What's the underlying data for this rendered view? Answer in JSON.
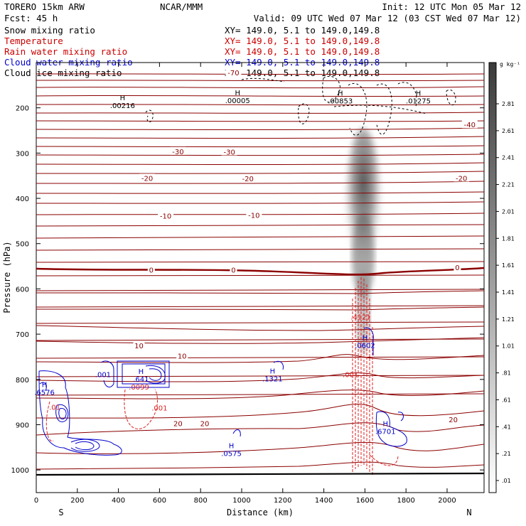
{
  "header": {
    "model": "TORERO  15km ARW",
    "center": "NCAR/MMM",
    "init": "Init: 12 UTC Mon 05 Mar 12",
    "fcst": "Fcst:   45 h",
    "valid": "Valid: 09 UTC Wed 07 Mar 12 (03 CST Wed 07 Mar 12)"
  },
  "legend": [
    {
      "label": "Snow mixing ratio",
      "color": "#000000",
      "xy": "XY= 149.0,  5.1 to 149.0,149.8"
    },
    {
      "label": "Temperature",
      "color": "#cc0000",
      "xy": "XY= 149.0,  5.1 to 149.0,149.8"
    },
    {
      "label": "Rain water mixing ratio",
      "color": "#cc0000",
      "xy": "XY= 149.0,  5.1 to 149.0,149.8"
    },
    {
      "label": "Cloud water mixing ratio",
      "color": "#0000cc",
      "xy": "XY= 149.0,  5.1 to 149.0,149.8"
    },
    {
      "label": "Cloud ice mixing ratio",
      "color": "#000000",
      "xy": "XY= 149.0,  5.1 to 149.0,149.8"
    }
  ],
  "colors": {
    "temperature": "#8b0000",
    "rain": "#dd2222",
    "cloud_water": "#0000cc",
    "cloud_ice": "#000000"
  },
  "chart_data": {
    "type": "cross-section",
    "xlabel": "Distance (km)",
    "ylabel": "Pressure (hPa)",
    "xlim": [
      0,
      2180
    ],
    "ylim": [
      1050,
      100
    ],
    "x_ticks": [
      0,
      200,
      400,
      600,
      800,
      1000,
      1200,
      1400,
      1600,
      1800,
      2000
    ],
    "y_ticks": [
      200,
      300,
      400,
      500,
      600,
      700,
      800,
      900,
      1000
    ],
    "x_end_labels": {
      "left": "S",
      "right": "N"
    },
    "colorbar": {
      "unit": "g kg⁻¹",
      "labels": [
        ".01",
        ".21",
        ".41",
        ".61",
        ".81",
        "1.01",
        "1.21",
        "1.41",
        "1.61",
        "1.81",
        "2.01",
        "2.21",
        "2.41",
        "2.61",
        "2.81"
      ]
    },
    "temperature_isotherms": [
      {
        "label": "-70",
        "p": 122,
        "lx": 960
      },
      {
        "label": "-40",
        "p": 237,
        "lx": 2110
      },
      {
        "label": "-30",
        "p": 296,
        "lx": 690
      },
      {
        "label": "-30",
        "p": 297,
        "lx": 940
      },
      {
        "label": "-20",
        "p": 355,
        "lx": 540
      },
      {
        "label": "-20",
        "p": 356,
        "lx": 1030
      },
      {
        "label": "-20",
        "p": 355,
        "lx": 2070
      },
      {
        "label": "-10",
        "p": 438,
        "lx": 630
      },
      {
        "label": "-10",
        "p": 437,
        "lx": 1060
      },
      {
        "label": "0",
        "p": 558,
        "lx": 560
      },
      {
        "label": "0",
        "p": 558,
        "lx": 960
      },
      {
        "label": "0",
        "p": 552,
        "lx": 2050
      },
      {
        "label": "10",
        "p": 725,
        "lx": 500
      },
      {
        "label": "10",
        "p": 748,
        "lx": 710
      },
      {
        "label": "20",
        "p": 897,
        "lx": 690
      },
      {
        "label": "20",
        "p": 897,
        "lx": 820
      },
      {
        "label": "20",
        "p": 888,
        "lx": 2030
      }
    ],
    "annotations": [
      {
        "text": "H",
        "sub": ".00216",
        "x": 420,
        "p": 183,
        "series": "cloud_ice"
      },
      {
        "text": "H",
        "sub": ".00005",
        "x": 980,
        "p": 172,
        "series": "cloud_ice"
      },
      {
        "text": "H",
        "sub": ".00853",
        "x": 1480,
        "p": 173,
        "series": "cloud_ice"
      },
      {
        "text": "H",
        "sub": ".01275",
        "x": 1860,
        "p": 173,
        "series": "cloud_ice"
      },
      {
        "text": "H",
        "sub": ".641",
        "x": 510,
        "p": 788,
        "series": "cloud_water"
      },
      {
        "text": "H",
        "sub": ".6576",
        "x": 40,
        "p": 817,
        "series": "cloud_water"
      },
      {
        "text": "H",
        "sub": ".1321",
        "x": 1150,
        "p": 787,
        "series": "cloud_water"
      },
      {
        "text": "H",
        "sub": ".0602",
        "x": 1600,
        "p": 713,
        "series": "cloud_water"
      },
      {
        "text": "H",
        "sub": ".6701",
        "x": 1700,
        "p": 903,
        "series": "cloud_water"
      },
      {
        "text": "H",
        "sub": ".0575",
        "x": 950,
        "p": 952,
        "series": "cloud_water"
      },
      {
        "text": ".001",
        "sub": "",
        "x": 325,
        "p": 795,
        "series": "cloud_water"
      },
      {
        "text": ".4121",
        "sub": "",
        "x": 1580,
        "p": 668,
        "series": "rain"
      },
      {
        "text": ".0099",
        "sub": "",
        "x": 500,
        "p": 822,
        "series": "rain"
      },
      {
        "text": ".001",
        "sub": "",
        "x": 600,
        "p": 869,
        "series": "rain"
      },
      {
        "text": ".001",
        "sub": "",
        "x": 1530,
        "p": 795,
        "series": "rain"
      },
      {
        "text": ".01",
        "sub": "",
        "x": 90,
        "p": 867,
        "series": "rain"
      }
    ]
  }
}
